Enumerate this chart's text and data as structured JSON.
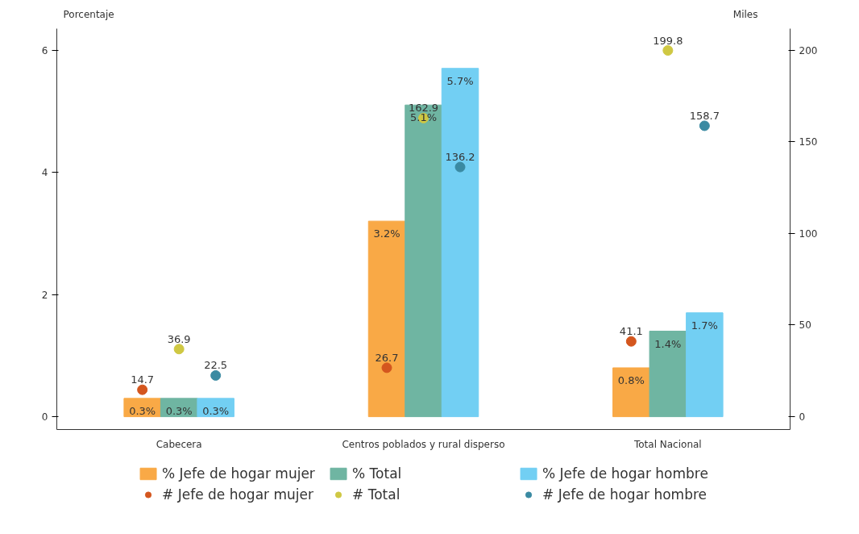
{
  "chart_data": {
    "type": "bar",
    "ylabel": "Porcentaje",
    "y2label": "Miles",
    "categories": [
      "Cabecera",
      "Centros poblados y rural disperso",
      "Total Nacional"
    ],
    "series": [
      {
        "name": "% Jefe de hogar mujer",
        "color": "#f9a946",
        "values": [
          0.3,
          3.2,
          0.8
        ],
        "value_labels": [
          "0.3%",
          "3.2%",
          "0.8%"
        ]
      },
      {
        "name": "% Total",
        "color": "#6fb5a2",
        "values": [
          0.3,
          5.1,
          1.4
        ],
        "value_labels": [
          "0.3%",
          "5.1%",
          "1.4%"
        ]
      },
      {
        "name": "% Jefe de hogar hombre",
        "color": "#72cff3",
        "values": [
          0.3,
          5.7,
          1.7
        ],
        "value_labels": [
          "0.3%",
          "5.7%",
          "1.7%"
        ]
      },
      {
        "name": "# Jefe de hogar mujer",
        "type": "scatter",
        "axis": "y2",
        "color": "#d4561e",
        "values": [
          14.7,
          26.7,
          41.1
        ],
        "value_labels": [
          "14.7",
          "26.7",
          "41.1"
        ]
      },
      {
        "name": "# Total",
        "type": "scatter",
        "axis": "y2",
        "color": "#cfc843",
        "values": [
          36.9,
          162.9,
          199.8
        ],
        "value_labels": [
          "36.9",
          "162.9",
          "199.8"
        ]
      },
      {
        "name": "# Jefe de hogar hombre",
        "type": "scatter",
        "axis": "y2",
        "color": "#3a8aa2",
        "values": [
          22.5,
          136.2,
          158.7
        ],
        "value_labels": [
          "22.5",
          "136.2",
          "158.7"
        ]
      }
    ],
    "ylim": [
      -0.21,
      6.35
    ],
    "yticks": [
      0,
      2,
      4,
      6
    ],
    "y2lim": [
      -7,
      211.7
    ],
    "y2ticks": [
      0,
      50,
      100,
      150,
      200
    ],
    "marker": "circle",
    "grid": false,
    "legend": "bottom"
  }
}
